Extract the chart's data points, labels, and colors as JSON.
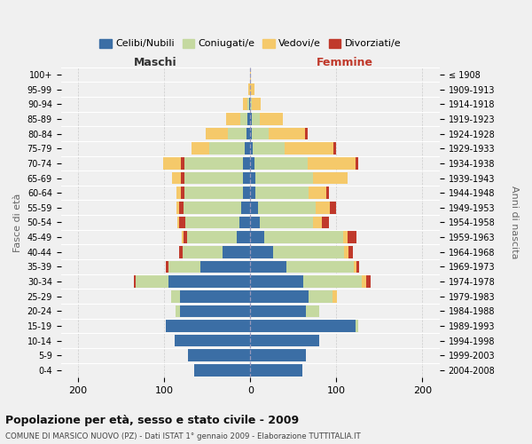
{
  "age_groups": [
    "0-4",
    "5-9",
    "10-14",
    "15-19",
    "20-24",
    "25-29",
    "30-34",
    "35-39",
    "40-44",
    "45-49",
    "50-54",
    "55-59",
    "60-64",
    "65-69",
    "70-74",
    "75-79",
    "80-84",
    "85-89",
    "90-94",
    "95-99",
    "100+"
  ],
  "birth_years": [
    "2004-2008",
    "1999-2003",
    "1994-1998",
    "1989-1993",
    "1984-1988",
    "1979-1983",
    "1974-1978",
    "1969-1973",
    "1964-1968",
    "1959-1963",
    "1954-1958",
    "1949-1953",
    "1944-1948",
    "1939-1943",
    "1934-1938",
    "1929-1933",
    "1924-1928",
    "1919-1923",
    "1914-1918",
    "1909-1913",
    "≤ 1908"
  ],
  "maschi": {
    "celibi": [
      65,
      72,
      88,
      98,
      82,
      82,
      95,
      58,
      32,
      16,
      13,
      11,
      9,
      9,
      9,
      6,
      4,
      3,
      1,
      0,
      0
    ],
    "coniugati": [
      0,
      0,
      0,
      0,
      5,
      10,
      38,
      37,
      47,
      57,
      62,
      67,
      67,
      67,
      67,
      42,
      22,
      9,
      2,
      0,
      0
    ],
    "vedovi": [
      0,
      0,
      0,
      0,
      0,
      0,
      0,
      0,
      0,
      2,
      2,
      3,
      5,
      10,
      20,
      20,
      26,
      16,
      5,
      2,
      0
    ],
    "divorziati": [
      0,
      0,
      0,
      0,
      0,
      0,
      2,
      3,
      4,
      5,
      8,
      5,
      5,
      5,
      5,
      0,
      0,
      0,
      0,
      0,
      0
    ]
  },
  "femmine": {
    "nubili": [
      60,
      65,
      80,
      122,
      65,
      68,
      62,
      42,
      27,
      16,
      11,
      9,
      6,
      6,
      5,
      3,
      2,
      2,
      0,
      0,
      0
    ],
    "coniugate": [
      0,
      0,
      0,
      3,
      15,
      28,
      68,
      78,
      82,
      92,
      62,
      67,
      62,
      67,
      62,
      37,
      19,
      9,
      2,
      0,
      0
    ],
    "vedove": [
      0,
      0,
      0,
      0,
      0,
      5,
      5,
      3,
      5,
      5,
      10,
      16,
      20,
      40,
      55,
      57,
      43,
      27,
      10,
      5,
      1
    ],
    "divorziate": [
      0,
      0,
      0,
      0,
      0,
      0,
      5,
      3,
      5,
      10,
      8,
      8,
      3,
      0,
      3,
      3,
      3,
      0,
      0,
      0,
      0
    ]
  },
  "colors": {
    "celibi_nubili": "#3b6ea5",
    "coniugati": "#c5d9a0",
    "vedovi": "#f5c96a",
    "divorziati": "#c0392b"
  },
  "xlim": 220,
  "title": "Popolazione per età, sesso e stato civile - 2009",
  "subtitle": "COMUNE DI MARSICO NUOVO (PZ) - Dati ISTAT 1° gennaio 2009 - Elaborazione TUTTITALIA.IT",
  "ylabel_left": "Fasce di età",
  "ylabel_right": "Anni di nascita",
  "xlabel_maschi": "Maschi",
  "xlabel_femmine": "Femmine",
  "bg_color": "#f0f0f0"
}
